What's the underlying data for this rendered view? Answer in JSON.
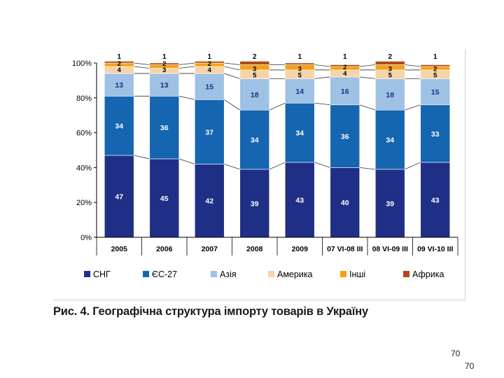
{
  "caption": "Рис. 4. Географічна структура імпорту товарів в Україну",
  "page_numbers": [
    "70",
    "70"
  ],
  "chart_data": {
    "type": "bar",
    "stacked": true,
    "categories": [
      "2005",
      "2006",
      "2007",
      "2008",
      "2009",
      "07 VI-08 III",
      "08 VI-09 III",
      "09 VI-10 III"
    ],
    "ylim": [
      0,
      100
    ],
    "yticks": [
      "0%",
      "20%",
      "40%",
      "60%",
      "80%",
      "100%"
    ],
    "grid": false,
    "legend_position": "bottom",
    "series": [
      {
        "name": "СНГ",
        "color": "#1f2f86",
        "values": [
          47,
          45,
          42,
          39,
          43,
          40,
          39,
          43
        ]
      },
      {
        "name": "ЄС-27",
        "color": "#1565b0",
        "values": [
          34,
          36,
          37,
          34,
          34,
          36,
          34,
          33
        ]
      },
      {
        "name": "Азія",
        "color": "#9ec1e4",
        "values": [
          13,
          13,
          15,
          18,
          14,
          16,
          18,
          15
        ]
      },
      {
        "name": "Америка",
        "color": "#f7d3a8",
        "values": [
          4,
          3,
          4,
          5,
          5,
          4,
          5,
          5
        ]
      },
      {
        "name": "Інші",
        "color": "#f2a215",
        "values": [
          2,
          2,
          2,
          3,
          3,
          2,
          3,
          2
        ]
      },
      {
        "name": "Африка",
        "color": "#b04a1c",
        "values": [
          1,
          1,
          1,
          2,
          1,
          1,
          2,
          1
        ]
      }
    ]
  }
}
